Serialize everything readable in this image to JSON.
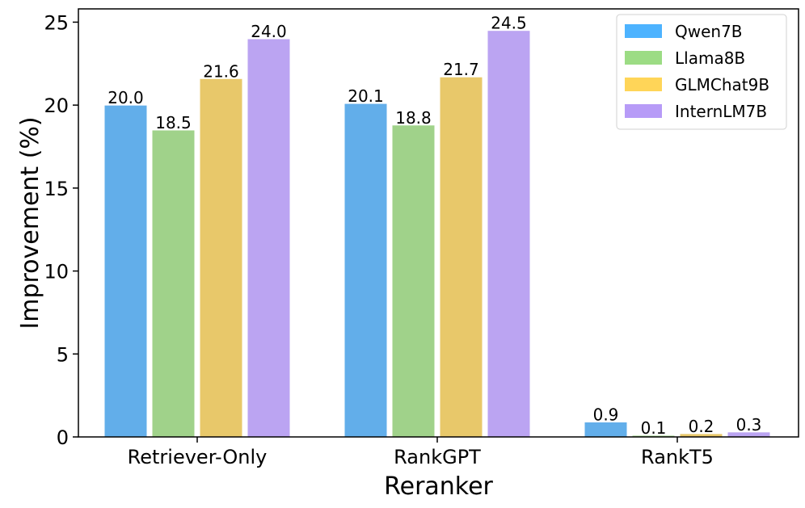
{
  "chart_data": {
    "type": "bar",
    "title": "",
    "xlabel": "Reranker",
    "ylabel": "Improvement (%)",
    "categories": [
      "Retriever-Only",
      "RankGPT",
      "RankT5"
    ],
    "ylim": [
      0,
      25.8
    ],
    "yticks": [
      0,
      5,
      10,
      15,
      20,
      25
    ],
    "legend_position": "top-right",
    "grid": false,
    "series": [
      {
        "name": "Qwen7B",
        "values": [
          20.0,
          20.1,
          0.9
        ],
        "color": "#62aeea",
        "legend_color": "#4db3ff"
      },
      {
        "name": "Llama8B",
        "values": [
          18.5,
          18.8,
          0.1
        ],
        "color": "#a0d28a",
        "legend_color": "#9cdc84"
      },
      {
        "name": "GLMChat9B",
        "values": [
          21.6,
          21.7,
          0.2
        ],
        "color": "#e8c86a",
        "legend_color": "#ffd558"
      },
      {
        "name": "InternLM7B",
        "values": [
          24.0,
          24.5,
          0.3
        ],
        "color": "#bba4f2",
        "legend_color": "#b79bf7"
      }
    ]
  }
}
